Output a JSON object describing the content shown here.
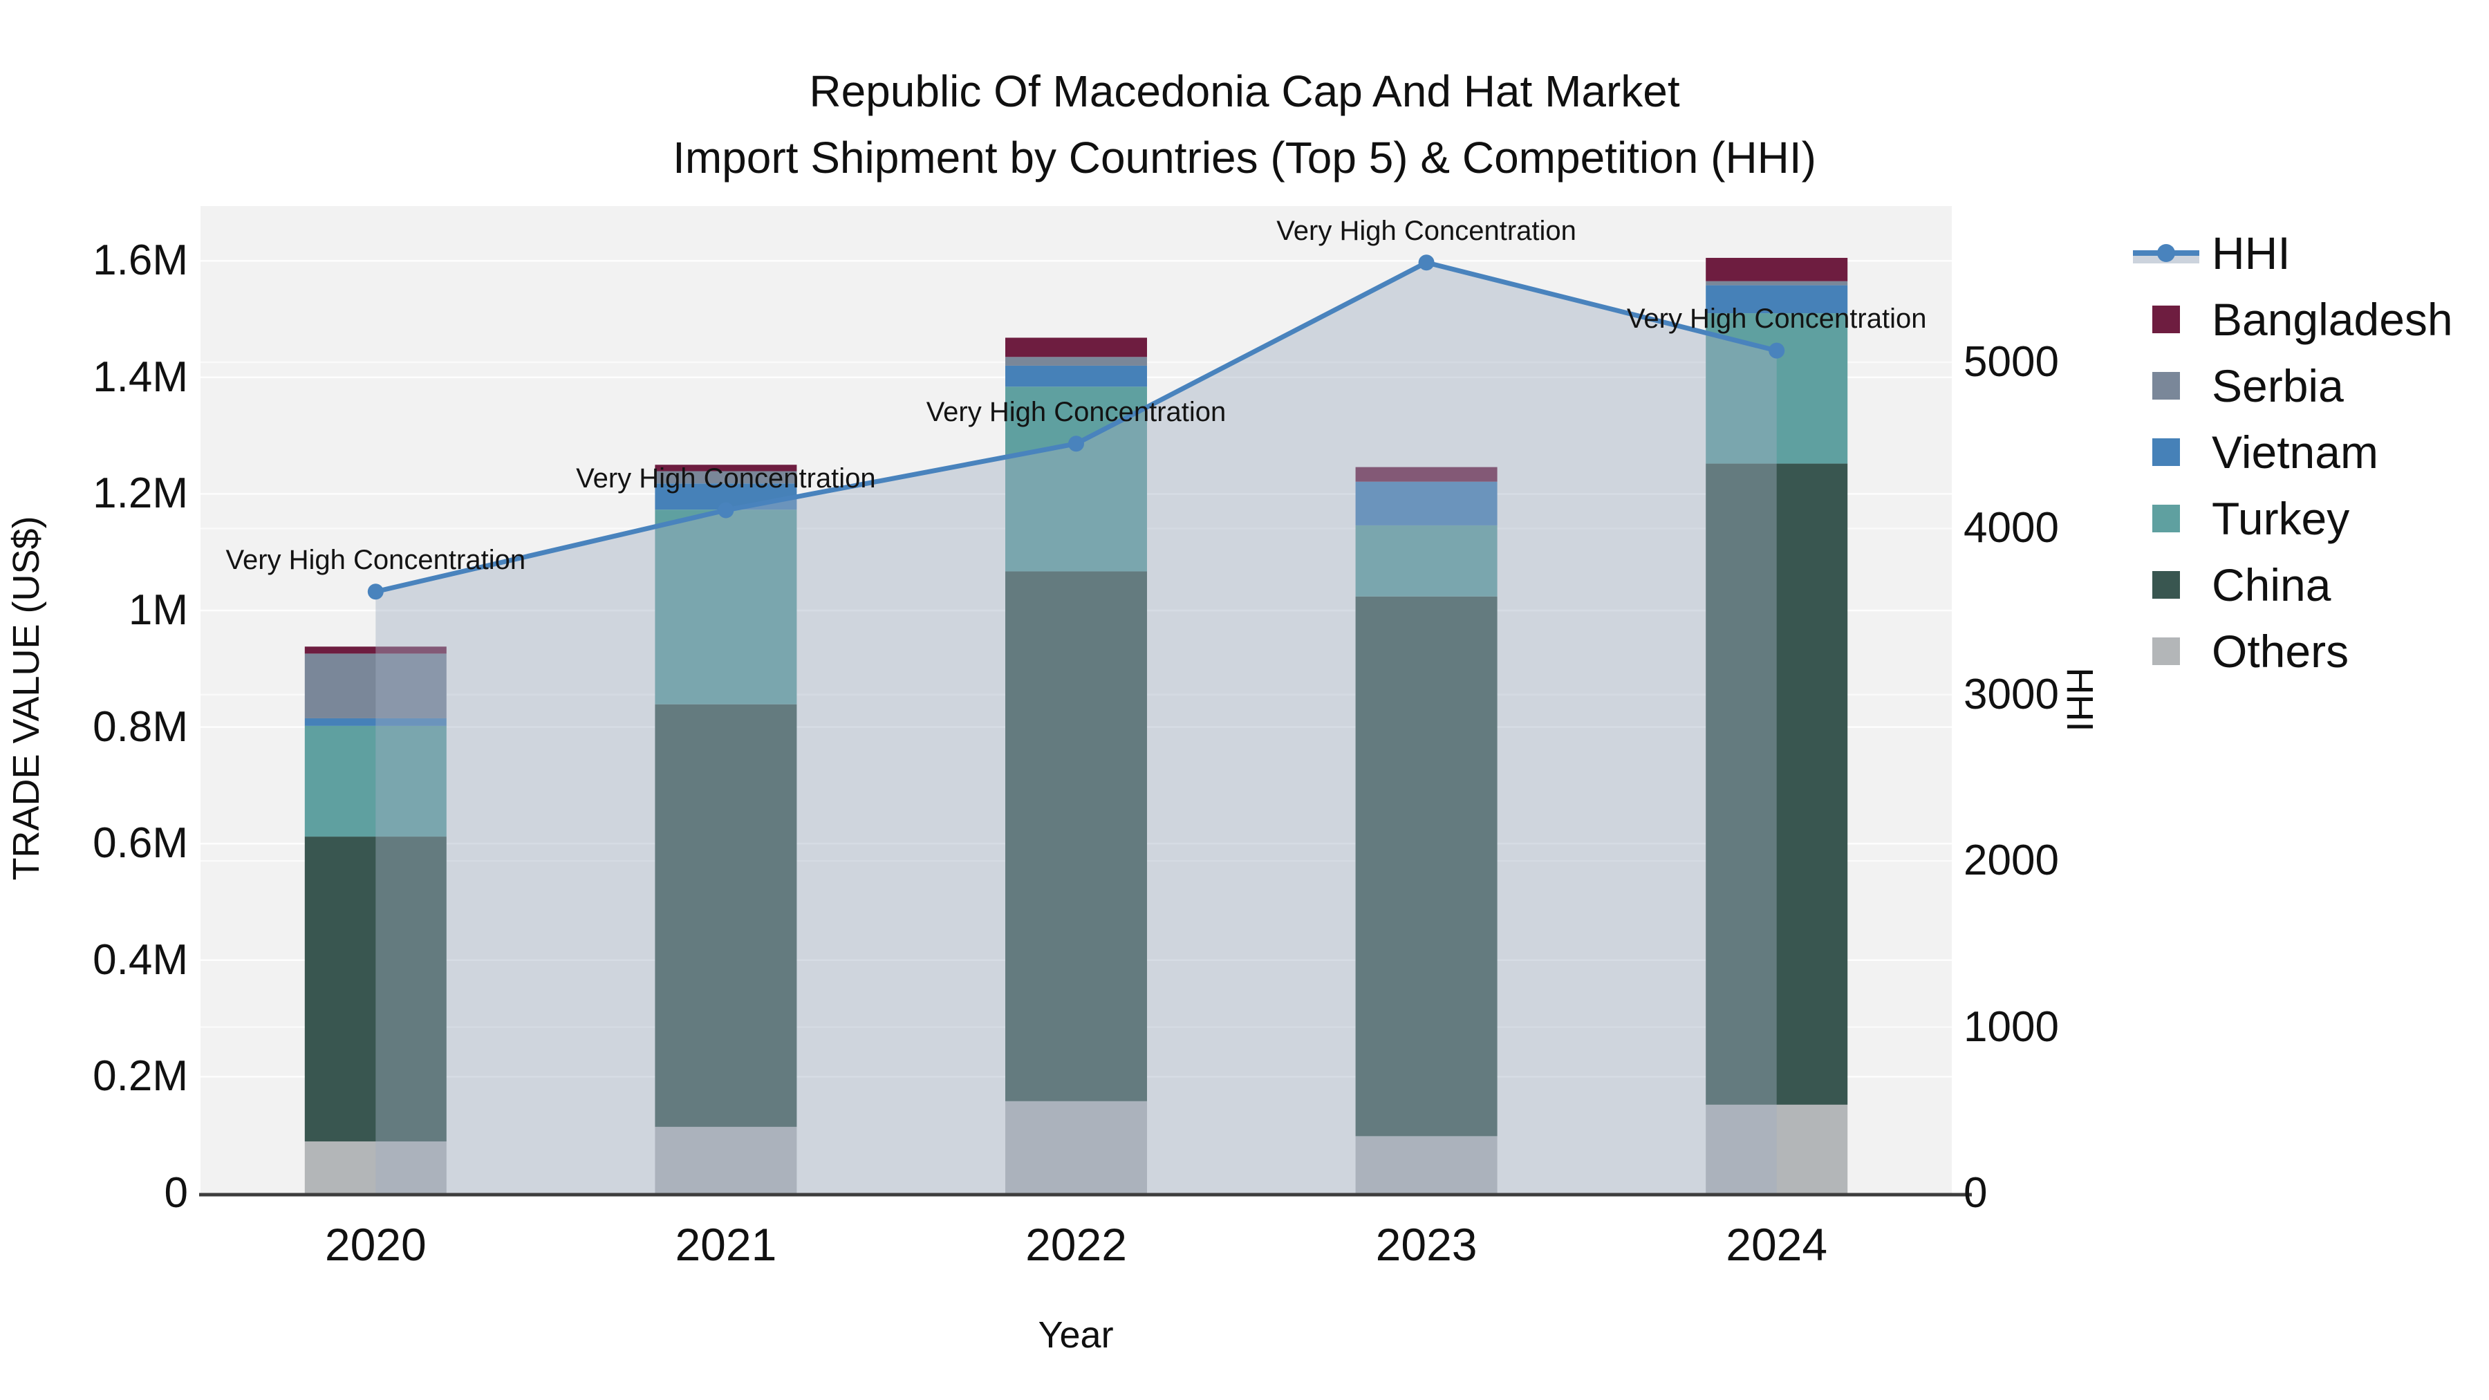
{
  "title": {
    "line1": "Republic Of Macedonia Cap And Hat Market",
    "line2": "Import Shipment by Countries (Top 5) & Competition (HHI)"
  },
  "axes": {
    "y_left": {
      "title": "TRADE VALUE (US$)",
      "ticks": [
        "1.6M",
        "1.4M",
        "1.2M",
        "1M",
        "0.8M",
        "0.6M",
        "0.4M",
        "0.2M",
        "0"
      ]
    },
    "y_right": {
      "title": "HHI",
      "ticks": [
        "5000",
        "4000",
        "3000",
        "2000",
        "1000",
        "0"
      ]
    },
    "x": {
      "title": "Year",
      "ticks": [
        "2020",
        "2021",
        "2022",
        "2023",
        "2024"
      ]
    }
  },
  "legend": {
    "items": [
      {
        "label": "HHI",
        "color": "#4983BD",
        "type": "line"
      },
      {
        "label": "Bangladesh",
        "color": "#6E1D40",
        "type": "box"
      },
      {
        "label": "Serbia",
        "color": "#7A8799",
        "type": "box"
      },
      {
        "label": "Vietnam",
        "color": "#4681B8",
        "type": "box"
      },
      {
        "label": "Turkey",
        "color": "#5FA0A0",
        "type": "box"
      },
      {
        "label": "China",
        "color": "#395650",
        "type": "box"
      },
      {
        "label": "Others",
        "color": "#B3B6B8",
        "type": "box"
      }
    ]
  },
  "chart_data": {
    "type": "bar+line",
    "title": "Republic Of Macedonia Cap And Hat Market Import Shipment by Countries (Top 5) & Competition (HHI)",
    "xlabel": "Year",
    "ylabel_left": "TRADE VALUE (US$)",
    "ylabel_right": "HHI",
    "categories": [
      "2020",
      "2021",
      "2022",
      "2023",
      "2024"
    ],
    "stacked": true,
    "y_left_range": [
      0,
      1695000
    ],
    "y_right_range": [
      0,
      5940
    ],
    "grid": true,
    "legend_position": "right",
    "bar_series": [
      {
        "name": "Others",
        "color": "#B3B6B8",
        "values": [
          89000,
          114000,
          158000,
          98000,
          152000
        ]
      },
      {
        "name": "China",
        "color": "#395650",
        "values": [
          523000,
          725000,
          909000,
          926000,
          1100000
        ]
      },
      {
        "name": "Turkey",
        "color": "#5FA0A0",
        "values": [
          190000,
          334000,
          317000,
          122000,
          258000
        ]
      },
      {
        "name": "Vietnam",
        "color": "#4681B8",
        "values": [
          13000,
          45000,
          36000,
          75000,
          48000
        ]
      },
      {
        "name": "Serbia",
        "color": "#7A8799",
        "values": [
          111000,
          21000,
          15000,
          0,
          7000
        ]
      },
      {
        "name": "Bangladesh",
        "color": "#6E1D40",
        "values": [
          12000,
          11000,
          33000,
          25000,
          40000
        ]
      }
    ],
    "line_series": {
      "name": "HHI",
      "color": "#4983BD",
      "area_fill": "rgba(160,174,192,0.42)",
      "values": [
        3620,
        4110,
        4510,
        5600,
        5070
      ]
    },
    "annotations": [
      "Very High Concentration",
      "Very High Concentration",
      "Very High Concentration",
      "Very High Concentration",
      "Very High Concentration"
    ]
  }
}
